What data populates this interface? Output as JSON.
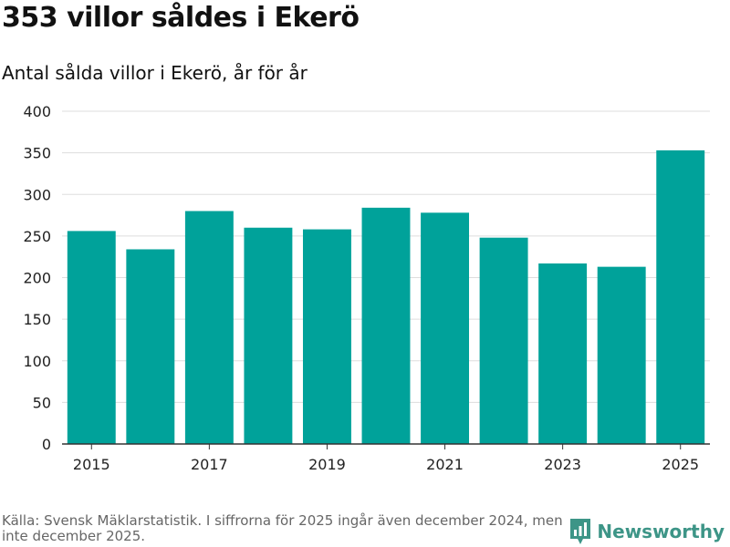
{
  "header": {
    "title": "353 villor såldes i Ekerö",
    "subtitle": "Antal sålda villor i Ekerö, år för år"
  },
  "chart_data": {
    "type": "bar",
    "categories": [
      "2015",
      "2016",
      "2017",
      "2018",
      "2019",
      "2020",
      "2021",
      "2022",
      "2023",
      "2024",
      "2025"
    ],
    "values": [
      256,
      234,
      280,
      260,
      258,
      284,
      278,
      248,
      217,
      213,
      353
    ],
    "x_tick_labels": [
      "2015",
      "2017",
      "2019",
      "2021",
      "2023",
      "2025"
    ],
    "y_ticks": [
      0,
      50,
      100,
      150,
      200,
      250,
      300,
      350,
      400
    ],
    "ylim": [
      0,
      400
    ],
    "xlabel": "",
    "ylabel": "",
    "bar_color": "#00a29a",
    "grid": true
  },
  "footer": {
    "source": "Källa: Svensk Mäklarstatistik. I siffrorna för 2025 ingår även december 2024, men inte december 2025."
  },
  "brand": {
    "name": "Newsworthy",
    "icon": "newsworthy-logo-icon",
    "color": "#3d9587"
  }
}
